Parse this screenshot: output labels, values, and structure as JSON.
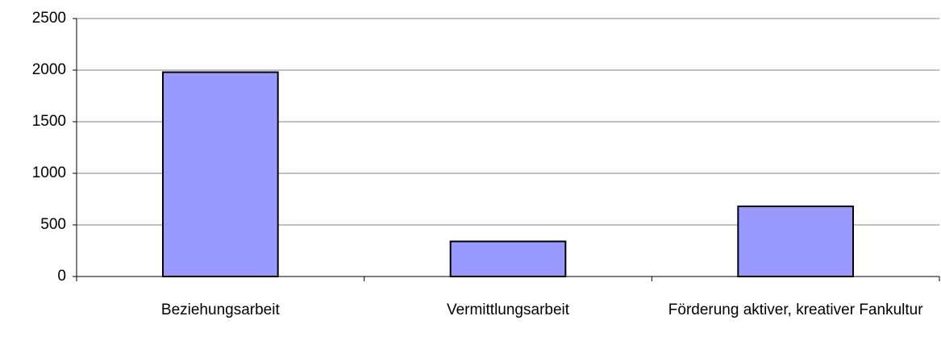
{
  "chart_data": {
    "type": "bar",
    "categories": [
      "Beziehungsarbeit",
      "Vermittlungsarbeit",
      "Förderung aktiver, kreativer Fankultur"
    ],
    "values": [
      1980,
      340,
      680
    ],
    "color": "#9999ff",
    "ylim": [
      0,
      2500
    ],
    "yticks": [
      0,
      500,
      1000,
      1500,
      2000,
      2500
    ],
    "grid": true
  }
}
